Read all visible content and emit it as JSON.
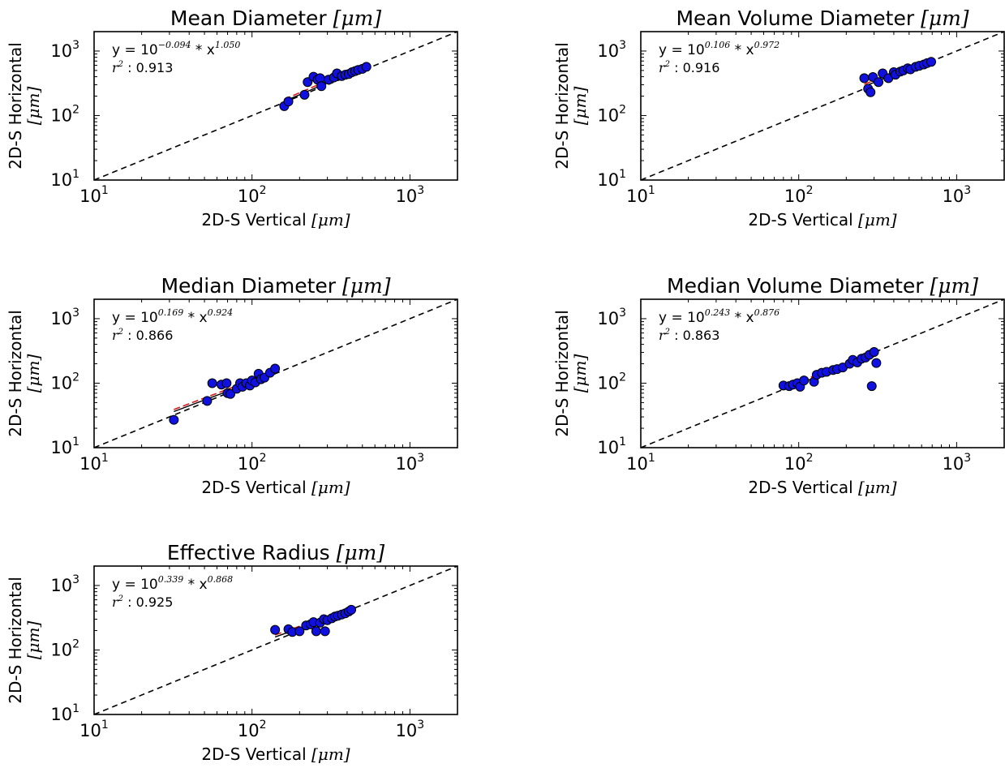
{
  "chart_data": [
    {
      "type": "scatter",
      "title": "Mean Diameter",
      "title_unit": "[μm]",
      "xlabel": "2D-S Vertical",
      "xlabel_unit": "[μm]",
      "ylabel": "2D-S Horizontal",
      "ylabel_unit": "[μm]",
      "xscale": "log",
      "yscale": "log",
      "xlim": [
        10,
        2000
      ],
      "ylim": [
        10,
        2000
      ],
      "xticks": [
        {
          "value": 10,
          "base": "10",
          "exp": "1"
        },
        {
          "value": 100,
          "base": "10",
          "exp": "2"
        },
        {
          "value": 1000,
          "base": "10",
          "exp": "3"
        }
      ],
      "yticks": [
        {
          "value": 10,
          "base": "10",
          "exp": "1"
        },
        {
          "value": 100,
          "base": "10",
          "exp": "2"
        },
        {
          "value": 1000,
          "base": "10",
          "exp": "3"
        }
      ],
      "annotation": {
        "eq_prefix": "y = 10",
        "eq_exp1": "−0.094",
        "eq_mid": " * x",
        "eq_exp2": "1.050",
        "r2_label": "r",
        "r2_sup": "2",
        "r2_value": " : 0.913"
      },
      "fit": {
        "a": -0.094,
        "b": 1.05,
        "xrange": [
          160,
          530
        ]
      },
      "one_to_one": true,
      "points": [
        [
          160,
          140
        ],
        [
          170,
          165
        ],
        [
          215,
          210
        ],
        [
          225,
          330
        ],
        [
          245,
          400
        ],
        [
          260,
          360
        ],
        [
          270,
          380
        ],
        [
          275,
          285
        ],
        [
          305,
          360
        ],
        [
          330,
          390
        ],
        [
          345,
          450
        ],
        [
          370,
          410
        ],
        [
          390,
          430
        ],
        [
          410,
          440
        ],
        [
          430,
          470
        ],
        [
          450,
          490
        ],
        [
          470,
          510
        ],
        [
          500,
          530
        ],
        [
          530,
          570
        ]
      ]
    },
    {
      "type": "scatter",
      "title": "Mean Volume Diameter",
      "title_unit": "[μm]",
      "xlabel": "2D-S Vertical",
      "xlabel_unit": "[μm]",
      "ylabel": "2D-S Horizontal",
      "ylabel_unit": "[μm]",
      "xscale": "log",
      "yscale": "log",
      "xlim": [
        10,
        2000
      ],
      "ylim": [
        10,
        2000
      ],
      "xticks": [
        {
          "value": 10,
          "base": "10",
          "exp": "1"
        },
        {
          "value": 100,
          "base": "10",
          "exp": "2"
        },
        {
          "value": 1000,
          "base": "10",
          "exp": "3"
        }
      ],
      "yticks": [
        {
          "value": 10,
          "base": "10",
          "exp": "1"
        },
        {
          "value": 100,
          "base": "10",
          "exp": "2"
        },
        {
          "value": 1000,
          "base": "10",
          "exp": "3"
        }
      ],
      "annotation": {
        "eq_prefix": "y = 10",
        "eq_exp1": "0.106",
        "eq_mid": " * x",
        "eq_exp2": "0.972",
        "r2_label": "r",
        "r2_sup": "2",
        "r2_value": " : 0.916"
      },
      "fit": {
        "a": 0.106,
        "b": 0.972,
        "xrange": [
          260,
          680
        ]
      },
      "one_to_one": true,
      "points": [
        [
          260,
          380
        ],
        [
          275,
          260
        ],
        [
          285,
          230
        ],
        [
          295,
          395
        ],
        [
          320,
          330
        ],
        [
          340,
          450
        ],
        [
          370,
          380
        ],
        [
          400,
          470
        ],
        [
          410,
          430
        ],
        [
          440,
          480
        ],
        [
          460,
          500
        ],
        [
          490,
          540
        ],
        [
          510,
          520
        ],
        [
          550,
          570
        ],
        [
          580,
          590
        ],
        [
          620,
          620
        ],
        [
          650,
          650
        ],
        [
          690,
          680
        ]
      ]
    },
    {
      "type": "scatter",
      "title": "Median Diameter",
      "title_unit": "[μm]",
      "xlabel": "2D-S Vertical",
      "xlabel_unit": "[μm]",
      "ylabel": "2D-S Horizontal",
      "ylabel_unit": "[μm]",
      "xscale": "log",
      "yscale": "log",
      "xlim": [
        10,
        2000
      ],
      "ylim": [
        10,
        2000
      ],
      "xticks": [
        {
          "value": 10,
          "base": "10",
          "exp": "1"
        },
        {
          "value": 100,
          "base": "10",
          "exp": "2"
        },
        {
          "value": 1000,
          "base": "10",
          "exp": "3"
        }
      ],
      "yticks": [
        {
          "value": 10,
          "base": "10",
          "exp": "1"
        },
        {
          "value": 100,
          "base": "10",
          "exp": "2"
        },
        {
          "value": 1000,
          "base": "10",
          "exp": "3"
        }
      ],
      "annotation": {
        "eq_prefix": "y = 10",
        "eq_exp1": "0.169",
        "eq_mid": " * x",
        "eq_exp2": "0.924",
        "r2_label": "r",
        "r2_sup": "2",
        "r2_value": " : 0.866"
      },
      "fit": {
        "a": 0.169,
        "b": 0.924,
        "xrange": [
          32,
          140
        ]
      },
      "one_to_one": true,
      "points": [
        [
          32,
          27
        ],
        [
          52,
          53
        ],
        [
          56,
          100
        ],
        [
          64,
          95
        ],
        [
          69,
          100
        ],
        [
          70,
          70
        ],
        [
          73,
          68
        ],
        [
          80,
          82
        ],
        [
          84,
          100
        ],
        [
          87,
          88
        ],
        [
          92,
          100
        ],
        [
          97,
          92
        ],
        [
          100,
          110
        ],
        [
          105,
          103
        ],
        [
          110,
          140
        ],
        [
          114,
          115
        ],
        [
          120,
          122
        ],
        [
          130,
          145
        ],
        [
          140,
          168
        ]
      ]
    },
    {
      "type": "scatter",
      "title": "Median Volume Diameter",
      "title_unit": "[μm]",
      "xlabel": "2D-S Vertical",
      "xlabel_unit": "[μm]",
      "ylabel": "2D-S Horizontal",
      "ylabel_unit": "[μm]",
      "xscale": "log",
      "yscale": "log",
      "xlim": [
        10,
        2000
      ],
      "ylim": [
        10,
        2000
      ],
      "xticks": [
        {
          "value": 10,
          "base": "10",
          "exp": "1"
        },
        {
          "value": 100,
          "base": "10",
          "exp": "2"
        },
        {
          "value": 1000,
          "base": "10",
          "exp": "3"
        }
      ],
      "yticks": [
        {
          "value": 10,
          "base": "10",
          "exp": "1"
        },
        {
          "value": 100,
          "base": "10",
          "exp": "2"
        },
        {
          "value": 1000,
          "base": "10",
          "exp": "3"
        }
      ],
      "annotation": {
        "eq_prefix": "y = 10",
        "eq_exp1": "0.243",
        "eq_mid": " * x",
        "eq_exp2": "0.876",
        "r2_label": "r",
        "r2_sup": "2",
        "r2_value": " : 0.863"
      },
      "fit": {
        "a": 0.243,
        "b": 0.876,
        "xrange": [
          80,
          310
        ]
      },
      "one_to_one": true,
      "points": [
        [
          80,
          92
        ],
        [
          87,
          90
        ],
        [
          92,
          95
        ],
        [
          98,
          100
        ],
        [
          102,
          88
        ],
        [
          108,
          110
        ],
        [
          125,
          105
        ],
        [
          130,
          135
        ],
        [
          140,
          145
        ],
        [
          150,
          150
        ],
        [
          165,
          160
        ],
        [
          175,
          165
        ],
        [
          190,
          175
        ],
        [
          210,
          200
        ],
        [
          220,
          230
        ],
        [
          235,
          210
        ],
        [
          250,
          240
        ],
        [
          265,
          250
        ],
        [
          280,
          275
        ],
        [
          290,
          90
        ],
        [
          300,
          305
        ],
        [
          310,
          205
        ]
      ]
    },
    {
      "type": "scatter",
      "title": "Effective Radius",
      "title_unit": "[μm]",
      "xlabel": "2D-S Vertical",
      "xlabel_unit": "[μm]",
      "ylabel": "2D-S Horizontal",
      "ylabel_unit": "[μm]",
      "xscale": "log",
      "yscale": "log",
      "xlim": [
        10,
        2000
      ],
      "ylim": [
        10,
        2000
      ],
      "xticks": [
        {
          "value": 10,
          "base": "10",
          "exp": "1"
        },
        {
          "value": 100,
          "base": "10",
          "exp": "2"
        },
        {
          "value": 1000,
          "base": "10",
          "exp": "3"
        }
      ],
      "yticks": [
        {
          "value": 10,
          "base": "10",
          "exp": "1"
        },
        {
          "value": 100,
          "base": "10",
          "exp": "2"
        },
        {
          "value": 1000,
          "base": "10",
          "exp": "3"
        }
      ],
      "annotation": {
        "eq_prefix": "y = 10",
        "eq_exp1": "0.339",
        "eq_mid": " * x",
        "eq_exp2": "0.868",
        "r2_label": "r",
        "r2_sup": "2",
        "r2_value": " : 0.925"
      },
      "fit": {
        "a": 0.339,
        "b": 0.868,
        "xrange": [
          140,
          430
        ]
      },
      "one_to_one": true,
      "points": [
        [
          140,
          205
        ],
        [
          170,
          210
        ],
        [
          180,
          190
        ],
        [
          200,
          195
        ],
        [
          220,
          240
        ],
        [
          235,
          250
        ],
        [
          245,
          270
        ],
        [
          255,
          195
        ],
        [
          270,
          265
        ],
        [
          285,
          300
        ],
        [
          290,
          195
        ],
        [
          300,
          290
        ],
        [
          320,
          310
        ],
        [
          335,
          330
        ],
        [
          350,
          340
        ],
        [
          370,
          355
        ],
        [
          390,
          370
        ],
        [
          410,
          395
        ],
        [
          425,
          420
        ]
      ]
    }
  ]
}
